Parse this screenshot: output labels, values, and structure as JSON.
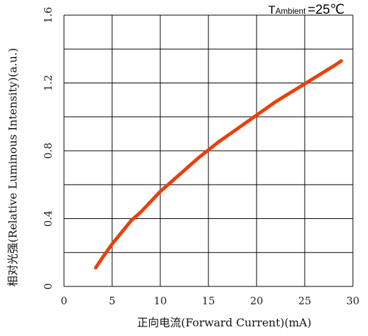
{
  "chart_data": {
    "type": "line",
    "xlabel": "正向电流(Forward Current)(mA)",
    "ylabel": "相对光强(Relative Luminous Intensity)(a.u.)",
    "xlim": [
      0,
      30
    ],
    "ylim": [
      0,
      1.6
    ],
    "x_ticks": [
      "0",
      "5",
      "10",
      "15",
      "20",
      "25",
      "30"
    ],
    "y_ticks": [
      "0",
      "0.4",
      "0.8",
      "1.2",
      "1.6"
    ],
    "grid": true,
    "annotation": {
      "prefix": "T",
      "subscript": "Ambient",
      "value": "=25℃"
    },
    "series": [
      {
        "color": "#e8400c",
        "x": [
          3.3,
          4,
          5,
          6,
          7,
          8,
          10,
          12,
          14,
          16,
          18,
          20,
          22,
          24,
          26,
          28,
          28.8
        ],
        "y": [
          0.11,
          0.17,
          0.25,
          0.32,
          0.39,
          0.44,
          0.56,
          0.66,
          0.76,
          0.85,
          0.93,
          1.01,
          1.09,
          1.16,
          1.23,
          1.3,
          1.33
        ]
      }
    ]
  }
}
